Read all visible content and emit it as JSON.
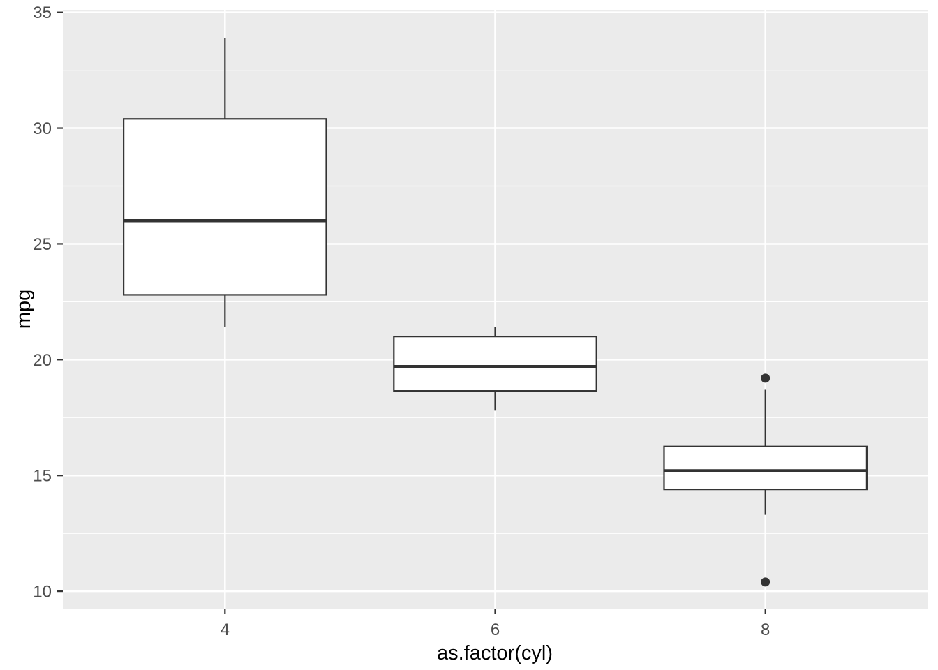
{
  "chart_data": {
    "type": "boxplot",
    "title": "",
    "xlabel": "as.factor(cyl)",
    "ylabel": "mpg",
    "categories": [
      "4",
      "6",
      "8"
    ],
    "series": [
      {
        "category": "4",
        "lower_whisker": 21.4,
        "q1": 22.8,
        "median": 26.0,
        "q3": 30.4,
        "upper_whisker": 33.9,
        "outliers": []
      },
      {
        "category": "6",
        "lower_whisker": 17.8,
        "q1": 18.65,
        "median": 19.7,
        "q3": 21.0,
        "upper_whisker": 21.4,
        "outliers": []
      },
      {
        "category": "8",
        "lower_whisker": 13.3,
        "q1": 14.4,
        "median": 15.2,
        "q3": 16.25,
        "upper_whisker": 18.7,
        "outliers": [
          19.2,
          10.4
        ]
      }
    ],
    "y_ticks": [
      10,
      15,
      20,
      25,
      30,
      35
    ],
    "y_minor_ticks": [
      12.5,
      17.5,
      22.5,
      27.5,
      32.5
    ],
    "ylim": [
      9.25,
      35.08
    ],
    "grid": true,
    "legend_position": "none"
  },
  "style": {
    "panel_background": "#EBEBEB",
    "grid_color": "#FFFFFF",
    "box_stroke": "#333333",
    "box_fill": "#FFFFFF",
    "outlier_color": "#333333",
    "tick_mark_color": "#333333",
    "tick_label_color": "#4D4D4D",
    "axis_title_color": "#000000",
    "figure_background": "#FFFFFF"
  }
}
